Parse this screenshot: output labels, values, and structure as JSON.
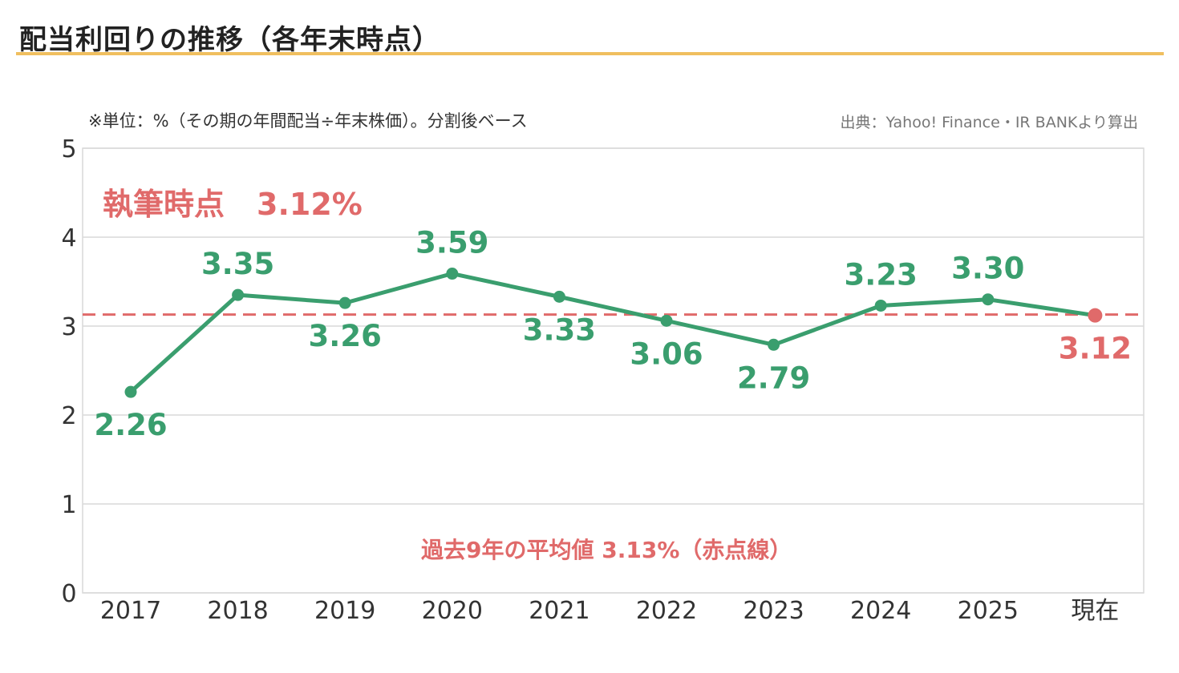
{
  "header": {
    "title": "配当利回りの推移（各年末時点）",
    "unit_note": "※単位：%（その期の年間配当÷年末株価）。分割後ベース",
    "source": "出典：Yahoo! Finance・IR BANKより算出"
  },
  "annotations": {
    "current_label": "執筆時点",
    "current_value": "3.12%",
    "average_note": "過去9年の平均値 3.13%（赤点線）"
  },
  "colors": {
    "line": "#3a9e6e",
    "current": "#e06a6a",
    "average_line": "#e06a6a",
    "grid": "#d9d9d9",
    "title_rule": "#f0bf5f"
  },
  "chart_data": {
    "type": "line",
    "categories": [
      "2017",
      "2018",
      "2019",
      "2020",
      "2021",
      "2022",
      "2023",
      "2024",
      "2025",
      "現在"
    ],
    "series": [
      {
        "values": [
          2.26,
          3.35,
          3.26,
          3.59,
          3.33,
          3.06,
          2.79,
          3.23,
          3.3,
          3.12
        ],
        "data_labels": [
          "2.26",
          "3.35",
          "3.26",
          "3.59",
          "3.33",
          "3.06",
          "2.79",
          "3.23",
          "3.30",
          "3.12"
        ],
        "label_positions": [
          "below",
          "above",
          "below",
          "above",
          "below",
          "below",
          "below",
          "above",
          "above",
          "below"
        ]
      }
    ],
    "reference_line": {
      "value": 3.13,
      "style": "dashed"
    },
    "highlight_last_point": true,
    "ylim": [
      0,
      5
    ],
    "yticks": [
      0,
      1,
      2,
      3,
      4,
      5
    ],
    "ytick_labels": [
      "0",
      "1",
      "2",
      "3",
      "4",
      "5"
    ],
    "grid": true,
    "xlabel": "",
    "ylabel": ""
  }
}
